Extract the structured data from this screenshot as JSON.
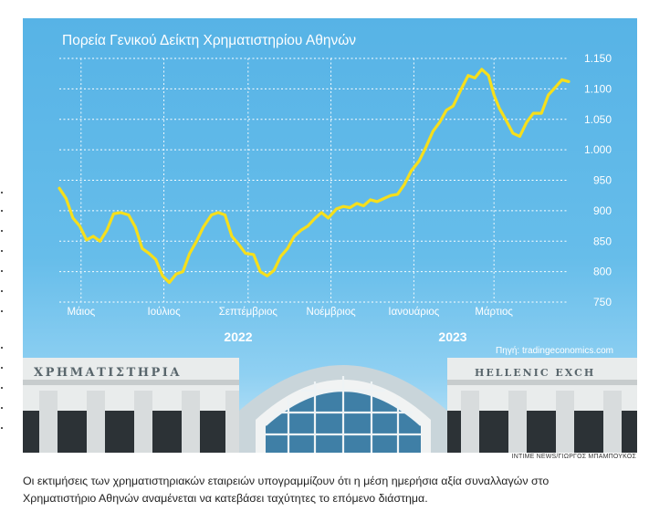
{
  "chart_data": {
    "type": "line",
    "title": "Πορεία Γενικού Δείκτη Χρηματιστηρίου Αθηνών",
    "xlabel": "",
    "ylabel": "",
    "x_tick_labels": [
      "Μάιος",
      "Ιούλιος",
      "Σεπτέμβριος",
      "Νοέμβριος",
      "Ιανουάριος",
      "Μάρτιος"
    ],
    "year_labels": [
      "2022",
      "2023"
    ],
    "ylim": [
      750,
      1150
    ],
    "y_ticks": [
      750,
      800,
      850,
      900,
      950,
      1000,
      1050,
      1100,
      1150
    ],
    "y_tick_labels": [
      "750",
      "800",
      "850",
      "900",
      "950",
      "1.000",
      "1.050",
      "1.100",
      "1.150"
    ],
    "grid": true,
    "line_color": "#f6df1c",
    "series": [
      {
        "x": [
          "2022-04-15",
          "2022-04-20",
          "2022-04-25",
          "2022-04-30",
          "2022-05-05",
          "2022-05-10",
          "2022-05-15",
          "2022-05-20",
          "2022-05-25",
          "2022-05-30",
          "2022-06-05",
          "2022-06-10",
          "2022-06-15",
          "2022-06-20",
          "2022-06-25",
          "2022-06-30",
          "2022-07-05",
          "2022-07-10",
          "2022-07-15",
          "2022-07-20",
          "2022-07-25",
          "2022-07-30",
          "2022-08-05",
          "2022-08-10",
          "2022-08-15",
          "2022-08-20",
          "2022-08-25",
          "2022-08-30",
          "2022-09-05",
          "2022-09-10",
          "2022-09-15",
          "2022-09-20",
          "2022-09-25",
          "2022-09-30",
          "2022-10-05",
          "2022-10-10",
          "2022-10-15",
          "2022-10-20",
          "2022-10-25",
          "2022-10-30",
          "2022-11-05",
          "2022-11-10",
          "2022-11-15",
          "2022-11-20",
          "2022-11-25",
          "2022-11-30",
          "2022-12-05",
          "2022-12-10",
          "2022-12-15",
          "2022-12-20",
          "2022-12-25",
          "2022-12-30",
          "2023-01-05",
          "2023-01-10",
          "2023-01-15",
          "2023-01-20",
          "2023-01-25",
          "2023-01-30",
          "2023-02-05",
          "2023-02-10",
          "2023-02-15",
          "2023-02-20",
          "2023-02-25",
          "2023-03-01",
          "2023-03-05",
          "2023-03-10",
          "2023-03-15",
          "2023-03-20",
          "2023-03-25",
          "2023-03-30",
          "2023-04-05",
          "2023-04-10",
          "2023-04-15",
          "2023-04-20",
          "2023-04-25"
        ],
        "values": [
          937,
          920,
          888,
          875,
          852,
          858,
          850,
          868,
          895,
          897,
          893,
          873,
          838,
          830,
          820,
          793,
          782,
          796,
          800,
          830,
          850,
          873,
          893,
          897,
          893,
          858,
          845,
          830,
          828,
          800,
          793,
          802,
          825,
          838,
          858,
          868,
          875,
          887,
          897,
          888,
          903,
          907,
          905,
          912,
          908,
          918,
          915,
          920,
          925,
          927,
          943,
          965,
          982,
          1005,
          1030,
          1045,
          1065,
          1072,
          1100,
          1122,
          1118,
          1132,
          1122,
          1090,
          1068,
          1048,
          1027,
          1022,
          1045,
          1060,
          1060,
          1090,
          1102,
          1115,
          1112
        ]
      }
    ],
    "annotations": [
      "Πηγή: tradingeconomics.com"
    ]
  },
  "photo": {
    "sign_left": "ΧΡΗΜΑΤΙΣΤΗΡΙΑ",
    "sign_right": "HELLENIC EXCH",
    "credit": "INTIME NEWS/ΓΙΩΡΓΟΣ ΜΠΑΜΠΟΥΚΟΣ"
  },
  "caption": {
    "line1": "Οι εκτιμήσεις των χρηματιστηριακών εταιρειών υπογραμμίζουν ότι η μέση ημερήσια αξία συναλλαγών στο",
    "line2": "Χρηματιστήριο Αθηνών αναμένεται να κατεβάσει ταχύτητες το επόμενο διάστημα."
  }
}
